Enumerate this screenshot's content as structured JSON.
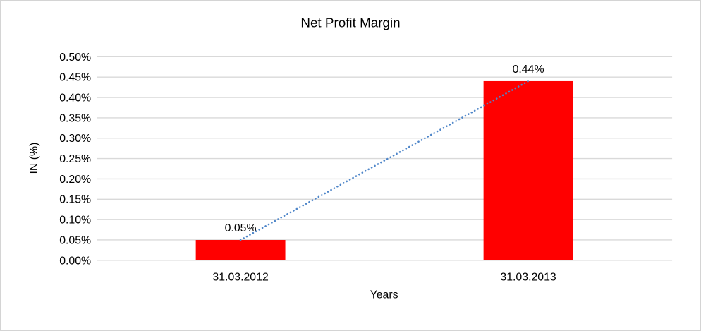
{
  "chart": {
    "title": "Net Profit Margin",
    "colors": {
      "bar": "#ff0000",
      "trendline": "#4f86c9",
      "gridline": "#d9d9d9",
      "axis_line": "#d0d0d0",
      "text": "#000000",
      "border": "#d4d4d4",
      "background": "#ffffff"
    }
  },
  "chart_data": {
    "type": "bar",
    "title": "Net Profit Margin",
    "xlabel": "Years",
    "ylabel": "IN (%)",
    "categories": [
      "31.03.2012",
      "31.03.2013"
    ],
    "values": [
      0.05,
      0.44
    ],
    "value_labels": [
      "0.05%",
      "0.44%"
    ],
    "ylim": [
      0,
      0.5
    ],
    "y_tick_step": 0.05,
    "y_tick_labels": [
      "0.00%",
      "0.05%",
      "0.10%",
      "0.15%",
      "0.20%",
      "0.25%",
      "0.30%",
      "0.35%",
      "0.40%",
      "0.45%",
      "0.50%"
    ],
    "grid": true,
    "legend": false,
    "bar_color": "#ff0000",
    "trendline": {
      "type": "linear",
      "style": "dotted",
      "color": "#4f86c9",
      "from_value": 0.05,
      "to_value": 0.44
    }
  }
}
